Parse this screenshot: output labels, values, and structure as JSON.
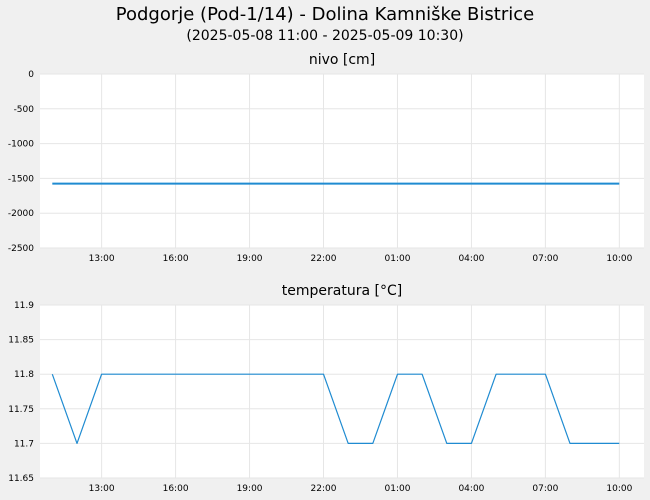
{
  "title": "Podgorje (Pod-1/14) - Dolina Kamniške Bistrice",
  "subtitle": "(2025-05-08 11:00 - 2025-05-09 10:30)",
  "colors": {
    "background": "#f0f0f0",
    "plot_bg": "#ffffff",
    "line": "#1f8bd1",
    "grid": "#e6e6e6"
  },
  "chart_data": [
    {
      "type": "line",
      "title": "nivo [cm]",
      "x_ticks": [
        "13:00",
        "16:00",
        "19:00",
        "22:00",
        "01:00",
        "04:00",
        "07:00",
        "10:00"
      ],
      "x_tick_hours": [
        2,
        5,
        8,
        11,
        14,
        17,
        20,
        23
      ],
      "x_range_hours": [
        -0.5,
        24
      ],
      "ylim": [
        -2500,
        0
      ],
      "y_ticks": [
        0,
        -500,
        -1000,
        -1500,
        -2000,
        -2500
      ],
      "grid": true,
      "series": [
        {
          "x_hours": [
            0,
            23
          ],
          "values": [
            -1575,
            -1575
          ]
        }
      ]
    },
    {
      "type": "line",
      "title": "temperatura [°C]",
      "x_ticks": [
        "13:00",
        "16:00",
        "19:00",
        "22:00",
        "01:00",
        "04:00",
        "07:00",
        "10:00"
      ],
      "x_tick_hours": [
        2,
        5,
        8,
        11,
        14,
        17,
        20,
        23
      ],
      "x_range_hours": [
        -0.5,
        24
      ],
      "ylim": [
        11.65,
        11.9
      ],
      "y_ticks": [
        11.9,
        11.85,
        11.8,
        11.75,
        11.7,
        11.65
      ],
      "grid": true,
      "series": [
        {
          "x_hours": [
            0,
            1,
            2,
            11,
            12,
            13,
            14,
            15,
            16,
            17,
            18,
            19,
            20,
            21,
            22,
            23
          ],
          "values": [
            11.8,
            11.7,
            11.8,
            11.8,
            11.7,
            11.7,
            11.8,
            11.8,
            11.7,
            11.7,
            11.8,
            11.8,
            11.8,
            11.7,
            11.7,
            11.7
          ]
        }
      ]
    }
  ]
}
